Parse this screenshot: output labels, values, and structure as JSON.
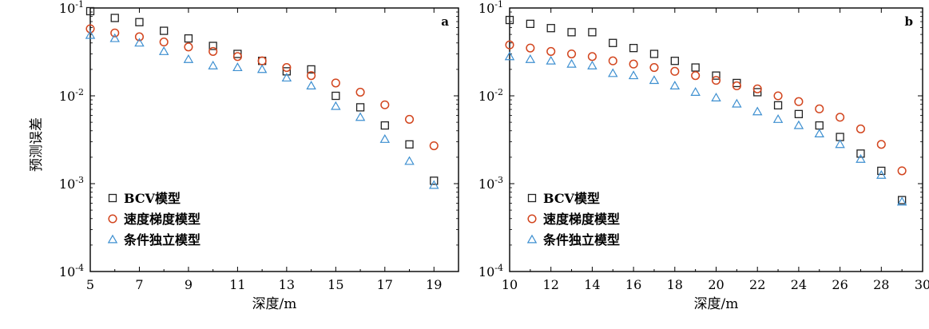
{
  "chart_data": [
    {
      "type": "scatter",
      "panel_label": "a",
      "xlabel": "深度/m",
      "ylabel": "预测误差",
      "xlim": [
        5,
        20
      ],
      "ylim": [
        0.0001,
        0.1
      ],
      "yscale": "log",
      "xticks": [
        5,
        7,
        9,
        11,
        13,
        15,
        17,
        19
      ],
      "yticks": [
        {
          "value": 0.0001,
          "base": "10",
          "exp": "-4"
        },
        {
          "value": 0.001,
          "base": "10",
          "exp": "-3"
        },
        {
          "value": 0.01,
          "base": "10",
          "exp": "-2"
        },
        {
          "value": 0.1,
          "base": "10",
          "exp": "-1"
        }
      ],
      "legend_position": "bottom-left",
      "series": [
        {
          "name": "BCV模型",
          "marker": "square",
          "color": "#222222",
          "x": [
            5,
            6,
            7,
            8,
            9,
            10,
            11,
            12,
            13,
            14,
            15,
            16,
            17,
            18,
            19
          ],
          "y": [
            0.092,
            0.077,
            0.069,
            0.055,
            0.045,
            0.037,
            0.03,
            0.025,
            0.019,
            0.02,
            0.01,
            0.0074,
            0.0046,
            0.0028,
            0.00108
          ]
        },
        {
          "name": "速度梯度模型",
          "marker": "circle",
          "color": "#d2451e",
          "x": [
            5,
            6,
            7,
            8,
            9,
            10,
            11,
            12,
            13,
            14,
            15,
            16,
            17,
            18,
            19
          ],
          "y": [
            0.058,
            0.052,
            0.047,
            0.041,
            0.036,
            0.032,
            0.028,
            0.025,
            0.021,
            0.017,
            0.014,
            0.011,
            0.0079,
            0.0054,
            0.0027
          ]
        },
        {
          "name": "条件独立模型",
          "marker": "triangle",
          "color": "#3d8fd0",
          "x": [
            5,
            6,
            7,
            8,
            9,
            10,
            11,
            12,
            13,
            14,
            15,
            16,
            17,
            18,
            19
          ],
          "y": [
            0.049,
            0.045,
            0.04,
            0.032,
            0.026,
            0.022,
            0.021,
            0.02,
            0.016,
            0.013,
            0.0076,
            0.0057,
            0.0032,
            0.0018,
            0.00096
          ]
        }
      ]
    },
    {
      "type": "scatter",
      "panel_label": "b",
      "xlabel": "深度/m",
      "ylabel": "预测误差",
      "xlim": [
        10,
        30
      ],
      "ylim": [
        0.0001,
        0.1
      ],
      "yscale": "log",
      "xticks": [
        10,
        12,
        14,
        16,
        18,
        20,
        22,
        24,
        26,
        28,
        30
      ],
      "yticks": [
        {
          "value": 0.0001,
          "base": "10",
          "exp": "-4"
        },
        {
          "value": 0.001,
          "base": "10",
          "exp": "-3"
        },
        {
          "value": 0.01,
          "base": "10",
          "exp": "-2"
        },
        {
          "value": 0.1,
          "base": "10",
          "exp": "-1"
        }
      ],
      "legend_position": "bottom-left",
      "series": [
        {
          "name": "BCV模型",
          "marker": "square",
          "color": "#222222",
          "x": [
            10,
            11,
            12,
            13,
            14,
            15,
            16,
            17,
            18,
            19,
            20,
            21,
            22,
            23,
            24,
            25,
            26,
            27,
            28,
            29
          ],
          "y": [
            0.073,
            0.066,
            0.059,
            0.053,
            0.053,
            0.04,
            0.035,
            0.03,
            0.025,
            0.021,
            0.017,
            0.014,
            0.011,
            0.0078,
            0.0062,
            0.0046,
            0.0034,
            0.0022,
            0.0014,
            0.00065
          ]
        },
        {
          "name": "速度梯度模型",
          "marker": "circle",
          "color": "#d2451e",
          "x": [
            10,
            11,
            12,
            13,
            14,
            15,
            16,
            17,
            18,
            19,
            20,
            21,
            22,
            23,
            24,
            25,
            26,
            27,
            28,
            29
          ],
          "y": [
            0.038,
            0.035,
            0.032,
            0.03,
            0.028,
            0.025,
            0.023,
            0.021,
            0.019,
            0.017,
            0.015,
            0.013,
            0.012,
            0.01,
            0.0086,
            0.0071,
            0.0057,
            0.0042,
            0.0028,
            0.0014
          ]
        },
        {
          "name": "条件独立模型",
          "marker": "triangle",
          "color": "#3d8fd0",
          "x": [
            10,
            11,
            12,
            13,
            14,
            15,
            16,
            17,
            18,
            19,
            20,
            21,
            22,
            23,
            24,
            25,
            26,
            27,
            28,
            29
          ],
          "y": [
            0.028,
            0.026,
            0.025,
            0.023,
            0.022,
            0.018,
            0.017,
            0.015,
            0.013,
            0.011,
            0.0095,
            0.0081,
            0.0066,
            0.0054,
            0.0046,
            0.0037,
            0.0028,
            0.0019,
            0.00125,
            0.00062
          ]
        }
      ]
    }
  ]
}
